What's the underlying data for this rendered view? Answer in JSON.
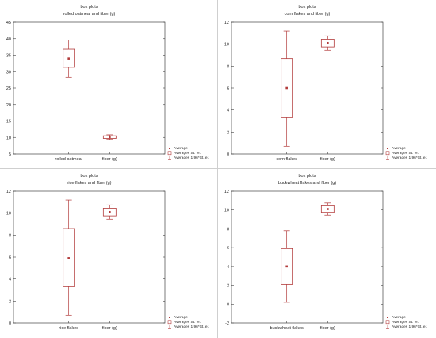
{
  "charts": {
    "chart_data": [
      {
        "type": "box",
        "title": "box plots",
        "subtitle": "rolled oatmeal and fiber (g)",
        "categories": [
          "rolled oatmeal",
          "fiber (g)"
        ],
        "ylim": [
          5,
          45
        ],
        "yticks": [
          5,
          10,
          15,
          20,
          25,
          30,
          35,
          40,
          45
        ],
        "series": [
          {
            "mean": 34.0,
            "se_low": 31.3,
            "se_high": 36.8,
            "ci_low": 28.3,
            "ci_high": 39.6
          },
          {
            "mean": 10.1,
            "se_low": 9.7,
            "se_high": 10.5,
            "ci_low": 9.4,
            "ci_high": 10.8
          }
        ],
        "legend": [
          "Average",
          "Averages St. er.",
          "Averages 1.96*St. er."
        ],
        "legend_position": "bottom-right",
        "grid": false,
        "color": "#b23a3a"
      },
      {
        "type": "box",
        "title": "box plots",
        "subtitle": "corn flakes and fiber (g)",
        "categories": [
          "corn flakes",
          "fiber (g)"
        ],
        "ylim": [
          0,
          12
        ],
        "yticks": [
          0,
          2,
          4,
          6,
          8,
          10,
          12
        ],
        "series": [
          {
            "mean": 6.0,
            "se_low": 3.3,
            "se_high": 8.7,
            "ci_low": 0.7,
            "ci_high": 11.2
          },
          {
            "mean": 10.1,
            "se_low": 9.75,
            "se_high": 10.45,
            "ci_low": 9.45,
            "ci_high": 10.75
          }
        ],
        "legend": [
          "Average",
          "Averages St. er.",
          "Averages 1.96*St. er."
        ],
        "legend_position": "bottom-right",
        "grid": false,
        "color": "#b23a3a"
      },
      {
        "type": "box",
        "title": "box plots",
        "subtitle": "rice flakes  and fiber (g)",
        "categories": [
          "rice flakes",
          "fiber (g)"
        ],
        "ylim": [
          0,
          12
        ],
        "yticks": [
          0,
          2,
          4,
          6,
          8,
          10,
          12
        ],
        "series": [
          {
            "mean": 5.9,
            "se_low": 3.3,
            "se_high": 8.6,
            "ci_low": 0.7,
            "ci_high": 11.2
          },
          {
            "mean": 10.1,
            "se_low": 9.75,
            "se_high": 10.45,
            "ci_low": 9.45,
            "ci_high": 10.75
          }
        ],
        "legend": [
          "Average",
          "Averages St. er.",
          "Averages 1.96*St. er."
        ],
        "legend_position": "bottom-right",
        "grid": false,
        "color": "#b23a3a"
      },
      {
        "type": "box",
        "title": "box plots",
        "subtitle": "buckwheat flakes and fiber (g)",
        "categories": [
          "buckwheat flakes",
          "fiber (g)"
        ],
        "ylim": [
          -2,
          12
        ],
        "yticks": [
          -2,
          0,
          2,
          4,
          6,
          8,
          10,
          12
        ],
        "series": [
          {
            "mean": 4.0,
            "se_low": 2.1,
            "se_high": 5.9,
            "ci_low": 0.2,
            "ci_high": 7.8
          },
          {
            "mean": 10.1,
            "se_low": 9.75,
            "se_high": 10.45,
            "ci_low": 9.45,
            "ci_high": 10.75
          }
        ],
        "legend": [
          "Average",
          "Averages St. er.",
          "Averages 1.96*St. er."
        ],
        "legend_position": "bottom-right",
        "grid": false,
        "color": "#b23a3a"
      }
    ]
  }
}
